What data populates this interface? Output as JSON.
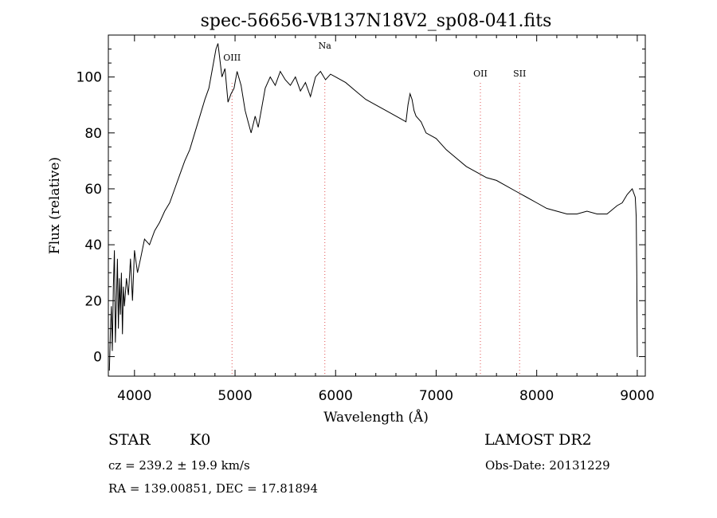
{
  "chart_data": {
    "type": "line",
    "title": "spec-56656-VB137N18V2_sp08-041.fits",
    "xlabel": "Wavelength (Å)",
    "ylabel": "Flux (relative)",
    "xlim": [
      3740,
      9080
    ],
    "ylim": [
      -7,
      115
    ],
    "xticks": [
      4000,
      5000,
      6000,
      7000,
      8000,
      9000
    ],
    "yticks": [
      0,
      20,
      40,
      60,
      80,
      100
    ],
    "grid": false,
    "line_color": "#000000",
    "marker_color": "#e05050",
    "spectral_lines": [
      {
        "name": "OIII",
        "wavelength": 4970
      },
      {
        "name": "Na",
        "wavelength": 5893
      },
      {
        "name": "OII",
        "wavelength": 7440
      },
      {
        "name": "SII",
        "wavelength": 7830
      }
    ],
    "series": [
      {
        "x": [
          3750,
          3760,
          3770,
          3780,
          3790,
          3800,
          3810,
          3820,
          3830,
          3840,
          3850,
          3860,
          3870,
          3880,
          3890,
          3900,
          3920,
          3940,
          3960,
          3980,
          4000,
          4030,
          4060,
          4100,
          4150,
          4200,
          4250,
          4300,
          4350,
          4400,
          4450,
          4500,
          4550,
          4600,
          4650,
          4700,
          4740,
          4780,
          4810,
          4830,
          4850,
          4870,
          4900,
          4930,
          4960,
          4990,
          5020,
          5060,
          5100,
          5130,
          5160,
          5200,
          5230,
          5260,
          5300,
          5350,
          5400,
          5450,
          5500,
          5550,
          5600,
          5650,
          5700,
          5750,
          5800,
          5850,
          5900,
          5950,
          6000,
          6100,
          6200,
          6300,
          6400,
          6500,
          6600,
          6700,
          6720,
          6740,
          6760,
          6780,
          6800,
          6850,
          6900,
          7000,
          7100,
          7200,
          7300,
          7400,
          7500,
          7600,
          7700,
          7800,
          7900,
          8000,
          8100,
          8200,
          8300,
          8400,
          8500,
          8600,
          8700,
          8800,
          8850,
          8900,
          8950,
          8980,
          8990,
          8995,
          9000,
          9005
        ],
        "y": [
          -5,
          8,
          18,
          2,
          25,
          38,
          5,
          20,
          35,
          10,
          28,
          15,
          30,
          8,
          25,
          18,
          28,
          22,
          35,
          20,
          38,
          30,
          35,
          42,
          40,
          45,
          48,
          52,
          55,
          60,
          65,
          70,
          74,
          80,
          86,
          92,
          96,
          104,
          110,
          112,
          106,
          100,
          103,
          91,
          94,
          96,
          102,
          97,
          88,
          84,
          80,
          86,
          82,
          88,
          96,
          100,
          97,
          102,
          99,
          97,
          100,
          95,
          98,
          93,
          100,
          102,
          99,
          101,
          100,
          98,
          95,
          92,
          90,
          88,
          86,
          84,
          90,
          94,
          92,
          88,
          86,
          84,
          80,
          78,
          74,
          71,
          68,
          66,
          64,
          63,
          61,
          59,
          57,
          55,
          53,
          52,
          51,
          51,
          52,
          51,
          51,
          54,
          55,
          58,
          60,
          57,
          50,
          30,
          0,
          0
        ]
      }
    ]
  },
  "info": {
    "object_class": "STAR",
    "subclass": "K0",
    "survey": "LAMOST DR2",
    "cz": "cz = 239.2 ± 19.9 km/s",
    "obs_date": "Obs-Date: 20131229",
    "coords": "RA = 139.00851, DEC =  17.81894"
  }
}
